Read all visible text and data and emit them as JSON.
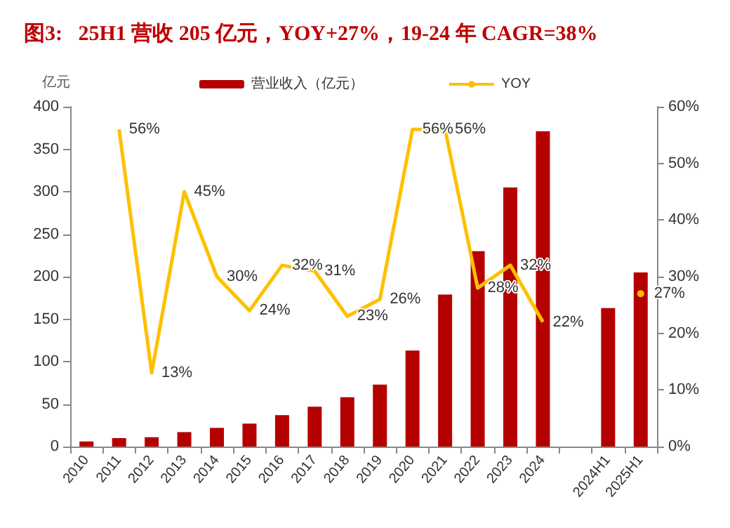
{
  "chart_data": {
    "type": "bar",
    "title": "图3:   25H1 营收 205 亿元，YOY+27%，19-24 年 CAGR=38%",
    "ylabel": "亿元",
    "categories": [
      "2010",
      "2011",
      "2012",
      "2013",
      "2014",
      "2015",
      "2016",
      "2017",
      "2018",
      "2019",
      "2020",
      "2021",
      "2022",
      "2023",
      "2024",
      null,
      "2024H1",
      "2025H1"
    ],
    "series": [
      {
        "name": "营业收入（亿元）",
        "color": "#b50000",
        "values": [
          6,
          10,
          11,
          17,
          22,
          27,
          37,
          47,
          58,
          73,
          113,
          179,
          230,
          305,
          371,
          null,
          163,
          205
        ]
      },
      {
        "name": "YOY",
        "type": "line",
        "axis": "y2",
        "color": "#ffc000",
        "values": [
          null,
          56,
          13,
          45,
          30,
          24,
          32,
          31,
          23,
          26,
          56,
          56,
          28,
          32,
          22,
          null,
          null,
          27
        ],
        "value_labels": [
          null,
          "56%",
          "13%",
          "45%",
          "30%",
          "24%",
          "32%",
          "31%",
          "23%",
          "26%",
          "56%",
          "56%",
          "28%",
          "32%",
          "22%",
          null,
          null,
          "27%"
        ]
      }
    ],
    "ylim": [
      0,
      400
    ],
    "yticks": [
      0,
      50,
      100,
      150,
      200,
      250,
      300,
      350,
      400
    ],
    "y2lim": [
      0,
      60
    ],
    "y2ticks": [
      {
        "value": 0,
        "label": "0%"
      },
      {
        "value": 10,
        "label": "10%"
      },
      {
        "value": 20,
        "label": "20%"
      },
      {
        "value": 30,
        "label": "30%"
      },
      {
        "value": 40,
        "label": "40%"
      },
      {
        "value": 50,
        "label": "50%"
      },
      {
        "value": 60,
        "label": "60%"
      }
    ],
    "legend": "top",
    "grid": false,
    "marker": "none"
  }
}
